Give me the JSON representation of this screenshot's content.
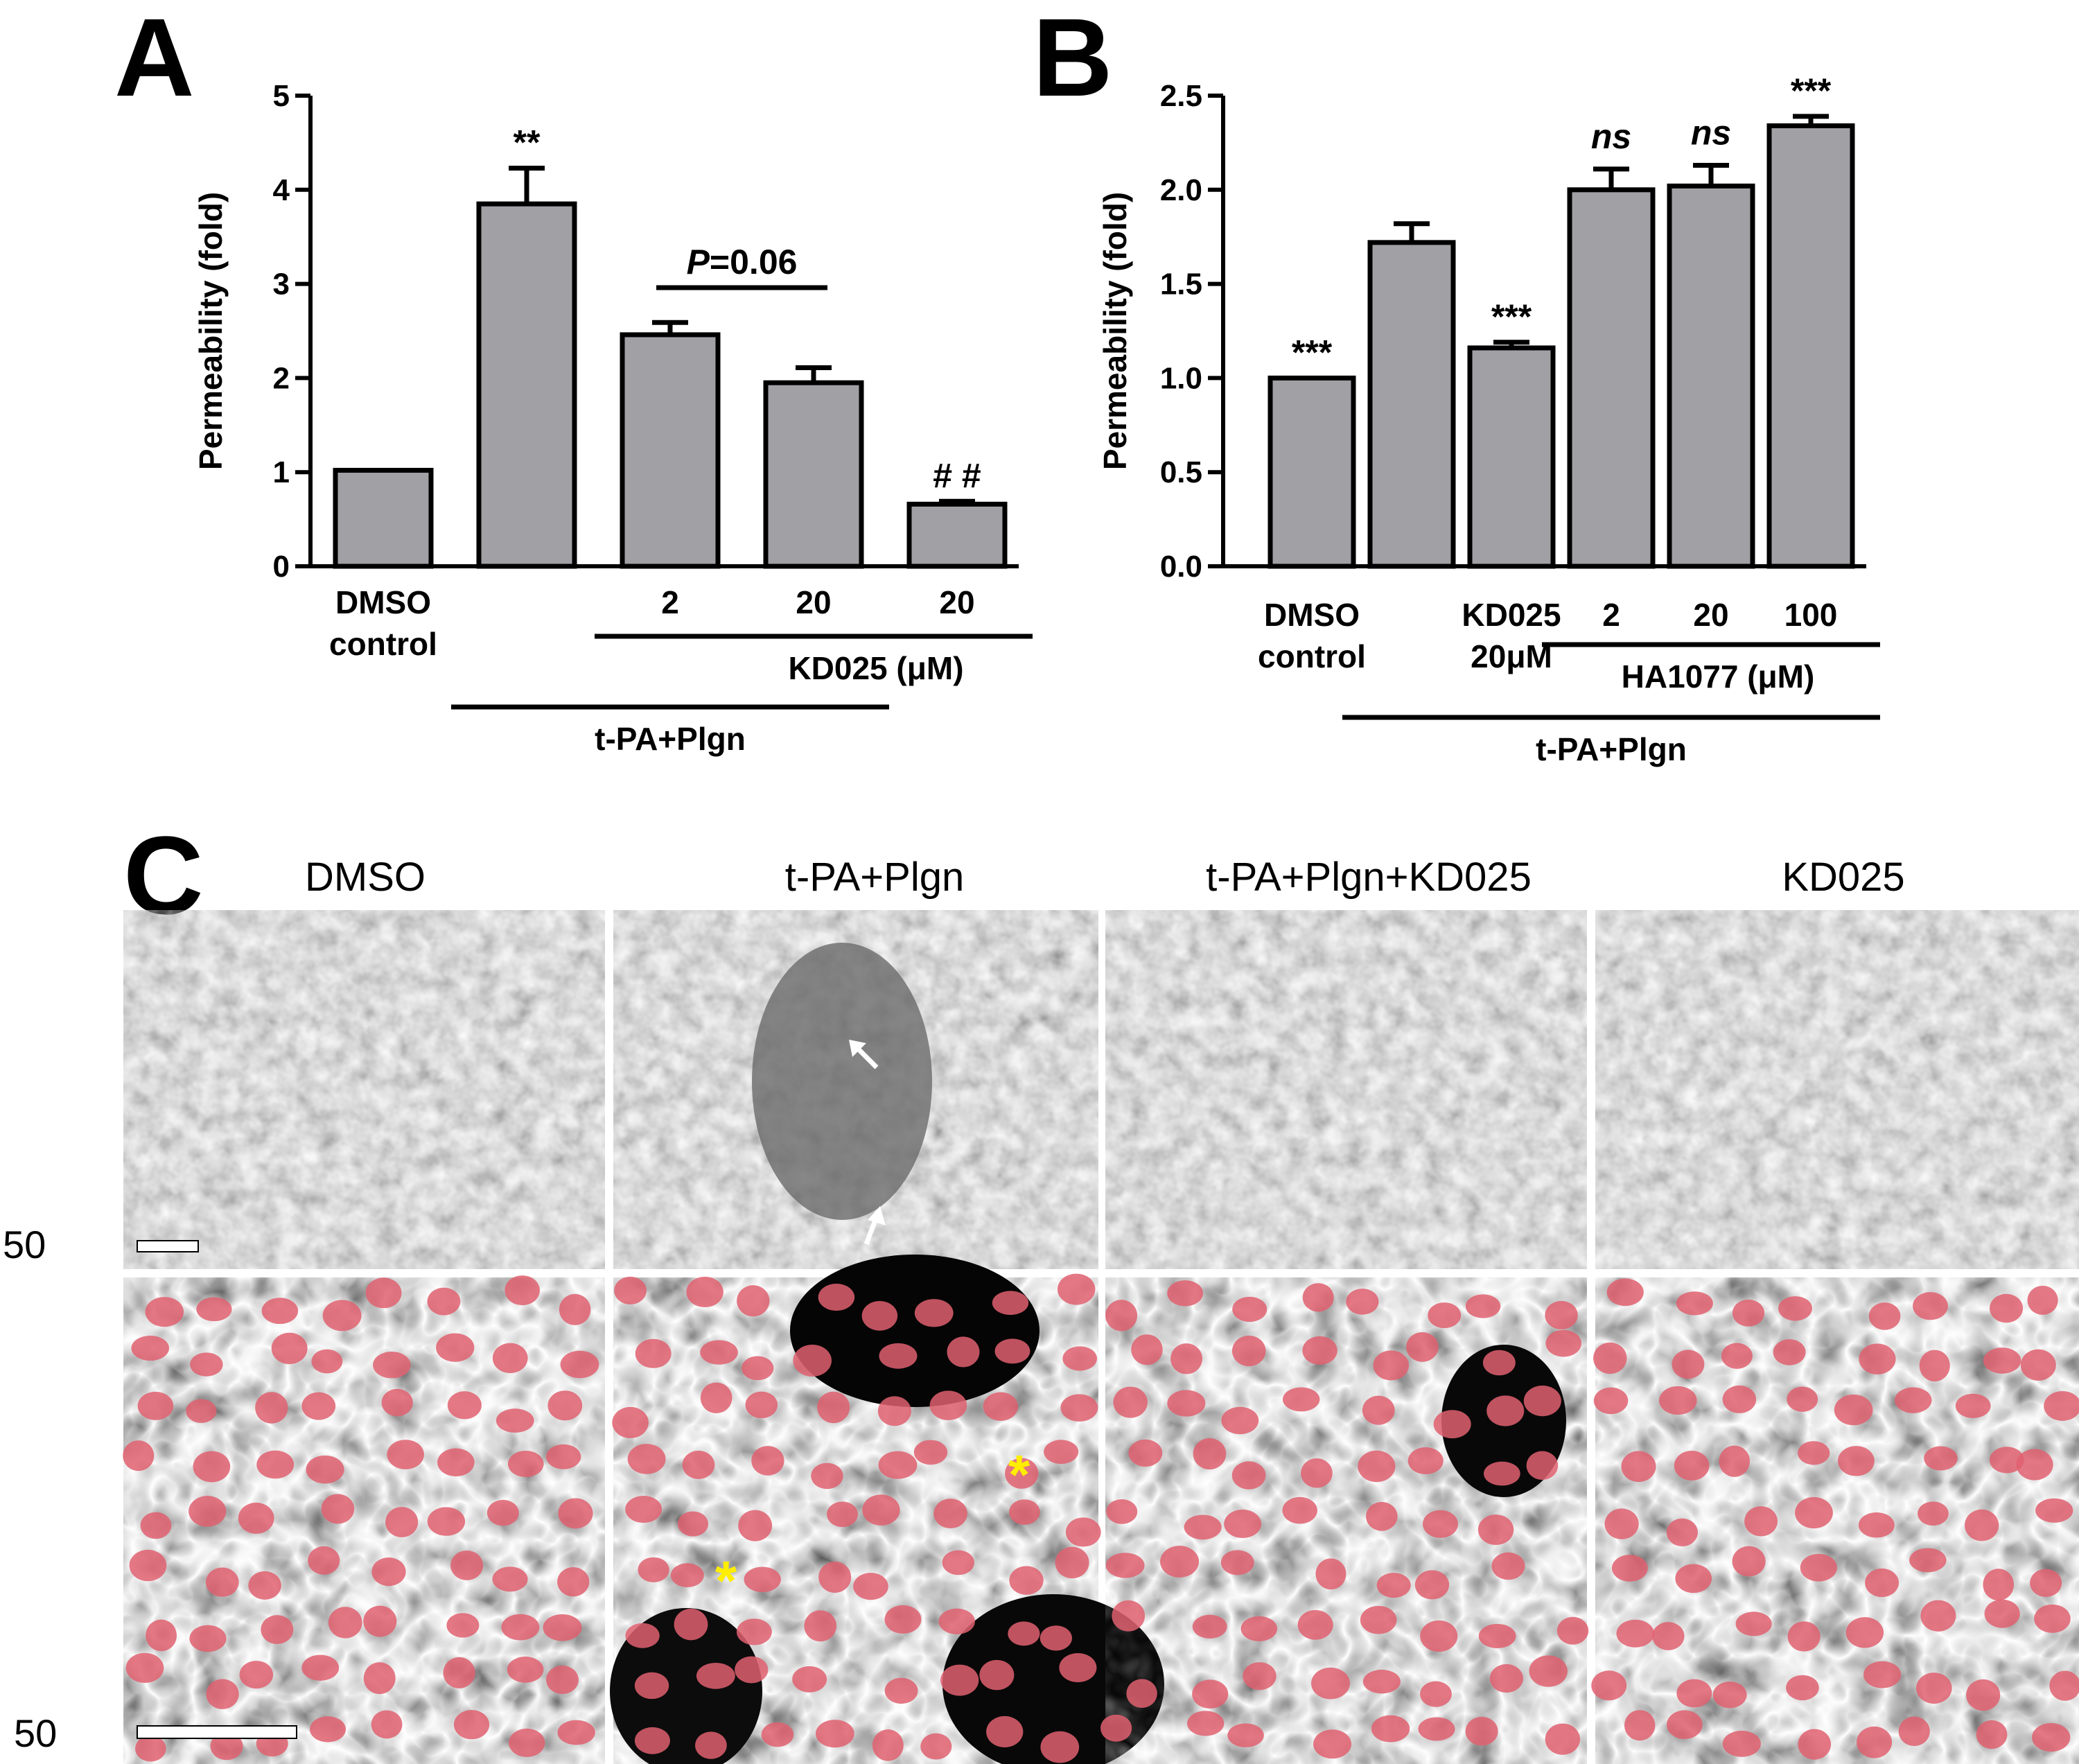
{
  "panels": {
    "a": "A",
    "b": "B",
    "c": "C"
  },
  "chart_data": [
    {
      "type": "bar",
      "panel": "A",
      "ylabel": "Permeability (fold)",
      "ylim": [
        0,
        5
      ],
      "yticks": [
        "0",
        "1",
        "2",
        "3",
        "4",
        "5"
      ],
      "values": [
        1.02,
        3.85,
        2.46,
        1.95,
        0.66
      ],
      "errors": [
        0,
        0.38,
        0.13,
        0.16,
        0.03
      ],
      "category_labels": [
        [
          "DMSO",
          "control"
        ],
        [],
        [
          "2"
        ],
        [
          "20"
        ],
        [
          "20"
        ]
      ],
      "annotations": [
        "",
        "**",
        "",
        "",
        "# #"
      ],
      "bracket": {
        "from": 2,
        "to": 3,
        "prefix": "P",
        "text": "=0.06"
      },
      "groups": [
        {
          "label": "KD025 (μM)",
          "from": 2,
          "to": 4,
          "level": 1
        },
        {
          "label": "t-PA+Plgn",
          "from": 1,
          "to": 3,
          "level": 2
        }
      ]
    },
    {
      "type": "bar",
      "panel": "B",
      "ylabel": "Permeability (fold)",
      "ylim": [
        0,
        2.5
      ],
      "yticks": [
        "0.0",
        "0.5",
        "1.0",
        "1.5",
        "2.0",
        "2.5"
      ],
      "values": [
        1.0,
        1.72,
        1.16,
        2.0,
        2.02,
        2.34
      ],
      "errors": [
        0,
        0.1,
        0.03,
        0.11,
        0.11,
        0.05
      ],
      "category_labels": [
        [
          "DMSO",
          "control"
        ],
        [],
        [
          "KD025",
          "20μM"
        ],
        [
          "2"
        ],
        [
          "20"
        ],
        [
          "100"
        ]
      ],
      "annotations": [
        "***",
        "",
        "***",
        "ns",
        "ns",
        "***"
      ],
      "groups": [
        {
          "label": "HA1077 (μM)",
          "from": 3,
          "to": 5,
          "level": 1
        },
        {
          "label": "t-PA+Plgn",
          "from": 1,
          "to": 5,
          "level": 2
        }
      ]
    }
  ],
  "micrographs": {
    "columns": [
      "DMSO",
      "t-PA+Plgn",
      "t-PA+Plgn+KD025",
      "KD025"
    ],
    "scale_bar_labels": [
      "50",
      "50"
    ],
    "marker_asterisk": "*"
  }
}
